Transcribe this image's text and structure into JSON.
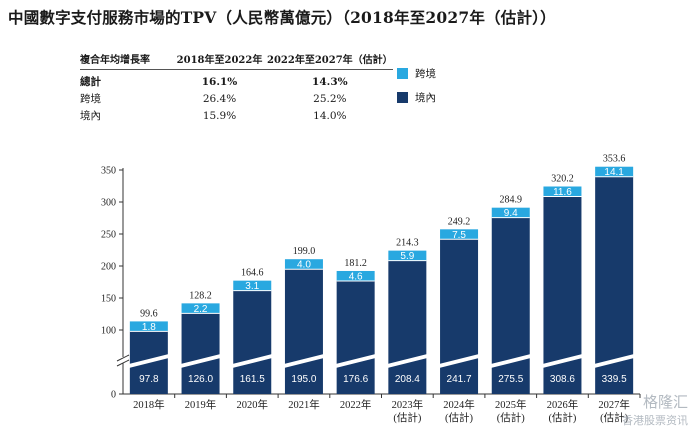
{
  "title": "中國數字支付服務市場的TPV（人民幣萬億元）（2018年至2027年（估計））",
  "cagr_table": {
    "header": [
      "複合年均增長率",
      "2018年至2022年",
      "2022年至2027年（估計）"
    ],
    "rows": [
      {
        "label": "總計",
        "v1": "16.1%",
        "v2": "14.3%"
      },
      {
        "label": "跨境",
        "v1": "26.4%",
        "v2": "25.2%"
      },
      {
        "label": "境內",
        "v1": "15.9%",
        "v2": "14.0%"
      }
    ]
  },
  "legend": [
    {
      "label": "跨境",
      "color": "#29a8e0"
    },
    {
      "label": "境內",
      "color": "#173a6b"
    }
  ],
  "watermark": {
    "line1": "格隆汇",
    "line2": "香港股票资讯"
  },
  "chart_data": {
    "type": "bar",
    "stacked": true,
    "categories": [
      "2018年",
      "2019年",
      "2020年",
      "2021年",
      "2022年",
      "2023年\n(估計)",
      "2024年\n(估計)",
      "2025年\n(估計)",
      "2026年\n(估計)",
      "2027年\n(估計)"
    ],
    "series": [
      {
        "name": "境內",
        "color": "#173a6b",
        "values": [
          97.8,
          126.0,
          161.5,
          195.0,
          176.6,
          208.4,
          241.7,
          275.5,
          308.6,
          339.5
        ]
      },
      {
        "name": "跨境",
        "color": "#29a8e0",
        "values": [
          1.8,
          2.2,
          3.1,
          4.0,
          4.6,
          5.9,
          7.5,
          9.4,
          11.6,
          14.1
        ]
      }
    ],
    "totals": [
      99.6,
      128.2,
      164.6,
      199.0,
      181.2,
      214.3,
      249.2,
      284.9,
      320.2,
      353.6
    ],
    "yticks": [
      0,
      100,
      150,
      200,
      250,
      300,
      350
    ],
    "axis_break": true,
    "ylim": [
      0,
      350
    ],
    "xlabel": "",
    "ylabel": ""
  }
}
